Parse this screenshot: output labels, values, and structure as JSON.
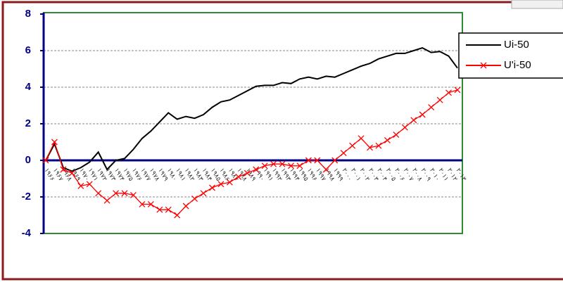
{
  "chart_data": {
    "type": "line",
    "categories": [
      "۱۹۶۶",
      "۱۹۶۷",
      "۱۹۶۸",
      "۱۹۶۹",
      "۱۹۷۰",
      "۱۹۷۱",
      "۱۹۷۲",
      "۱۹۷۳",
      "۱۹۷۴",
      "۱۹۷۵",
      "۱۹۷۶",
      "۱۹۷۷",
      "۱۹۷۸",
      "۱۹۷۹",
      "۱۹۸۰",
      "۱۹۸۱",
      "۱۹۸۲",
      "۱۹۸۳",
      "۱۹۸۴",
      "۱۹۸۵",
      "۱۹۸۶",
      "۱۹۸۷",
      "۱۹۸۸",
      "۱۹۸۹",
      "۱۹۹۰",
      "۱۹۹۱",
      "۱۹۹۲",
      "۱۹۹۳",
      "۱۹۹۴",
      "۱۹۹۵",
      "۱۹۹۶",
      "۱۹۹۷",
      "۱۹۹۸",
      "۱۹۹۹",
      "۲۰۰۰",
      "۲۰۰۱",
      "۲۰۰۲",
      "۲۰۰۳",
      "۲۰۰۴",
      "۲۰۰۵",
      "۲۰۰۶",
      "۲۰۰۷",
      "۲۰۰۸",
      "۲۰۰۹",
      "۲۰۱۰",
      "۲۰۱۱",
      "۲۰۱۲",
      "۲۰۱۳"
    ],
    "series": [
      {
        "name": "Ui-50",
        "color": "#000000",
        "marker": "none",
        "values": [
          0,
          0.9,
          -0.4,
          -0.6,
          -0.4,
          -0.1,
          0.45,
          -0.5,
          0,
          0.1,
          0.6,
          1.2,
          1.6,
          2.1,
          2.6,
          2.25,
          2.4,
          2.3,
          2.5,
          2.9,
          3.2,
          3.3,
          3.55,
          3.8,
          4.05,
          4.1,
          4.1,
          4.25,
          4.2,
          4.45,
          4.55,
          4.45,
          4.6,
          4.55,
          4.75,
          4.95,
          5.15,
          5.3,
          5.55,
          5.7,
          5.85,
          5.85,
          6.0,
          6.15,
          5.9,
          5.95,
          5.7,
          5.05
        ]
      },
      {
        "name": "U'i-50",
        "color": "#ff0000",
        "marker": "x",
        "values": [
          0,
          1.0,
          -0.5,
          -0.7,
          -1.4,
          -1.3,
          -1.8,
          -2.2,
          -1.8,
          -1.8,
          -1.9,
          -2.4,
          -2.4,
          -2.7,
          -2.7,
          -3.0,
          -2.5,
          -2.1,
          -1.8,
          -1.5,
          -1.3,
          -1.2,
          -0.9,
          -0.7,
          -0.5,
          -0.3,
          -0.2,
          -0.2,
          -0.3,
          -0.3,
          0,
          0,
          -0.5,
          0,
          0.4,
          0.8,
          1.2,
          0.7,
          0.8,
          1.1,
          1.4,
          1.8,
          2.2,
          2.5,
          2.9,
          3.3,
          3.7,
          3.85
        ]
      }
    ],
    "ylim": [
      -4,
      8
    ],
    "yticks": [
      -4,
      -2,
      0,
      2,
      4,
      6,
      8
    ],
    "grid": true,
    "legend": "upper right"
  }
}
